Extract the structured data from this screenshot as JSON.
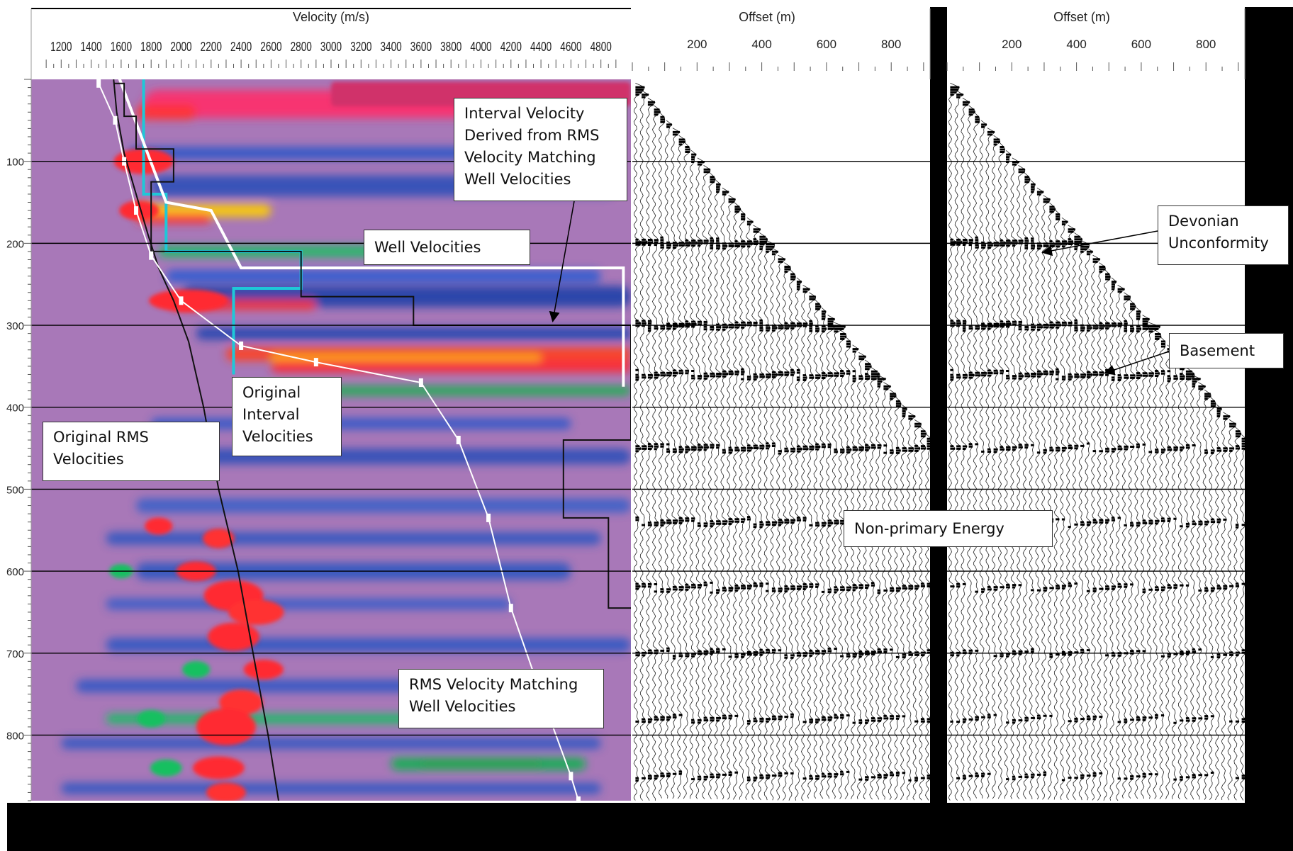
{
  "chart_data": [
    {
      "type": "heatmap",
      "title": "",
      "xlabel": "Velocity (m/s)",
      "ylabel": "",
      "x_ticks": [
        1200,
        1400,
        1600,
        1800,
        2000,
        2200,
        2400,
        2600,
        2800,
        3000,
        3200,
        3400,
        3600,
        3800,
        4000,
        4200,
        4400,
        4600,
        4800
      ],
      "y_ticks": [
        100,
        200,
        300,
        400,
        500,
        600,
        700,
        800
      ],
      "xlim": [
        1000,
        5000
      ],
      "ylim": [
        0,
        880
      ],
      "grid": true,
      "series": [
        {
          "name": "Original RMS Velocities",
          "color": "#111111",
          "points": [
            [
              1550,
              0
            ],
            [
              1570,
              40
            ],
            [
              1620,
              90
            ],
            [
              1700,
              140
            ],
            [
              1780,
              190
            ],
            [
              1850,
              230
            ],
            [
              1950,
              270
            ],
            [
              2050,
              320
            ],
            [
              2150,
              400
            ],
            [
              2250,
              500
            ],
            [
              2380,
              600
            ],
            [
              2480,
              700
            ],
            [
              2580,
              800
            ],
            [
              2650,
              880
            ]
          ]
        },
        {
          "name": "Original Interval Velocities",
          "color": "#1ec8d8",
          "points": [
            [
              1620,
              -10
            ],
            [
              1750,
              -10
            ],
            [
              1750,
              140
            ],
            [
              1900,
              140
            ],
            [
              1900,
              210
            ],
            [
              2800,
              210
            ],
            [
              2800,
              255
            ],
            [
              2350,
              255
            ],
            [
              2350,
              360
            ]
          ]
        },
        {
          "name": "Well Velocities",
          "color": "#ffffff",
          "points": [
            [
              1580,
              -5
            ],
            [
              1900,
              150
            ],
            [
              2200,
              160
            ],
            [
              2400,
              230
            ],
            [
              4950,
              230
            ],
            [
              4950,
              375
            ]
          ]
        },
        {
          "name": "Interval Velocity Derived from RMS Velocity Matching Well Velocities",
          "color": "#111111",
          "points": [
            [
              1550,
              5
            ],
            [
              1620,
              5
            ],
            [
              1620,
              45
            ],
            [
              1700,
              45
            ],
            [
              1700,
              85
            ],
            [
              1950,
              85
            ],
            [
              1950,
              125
            ],
            [
              1800,
              125
            ],
            [
              1800,
              210
            ],
            [
              2800,
              210
            ],
            [
              2800,
              265
            ],
            [
              3550,
              265
            ],
            [
              3550,
              300
            ],
            [
              5000,
              300
            ],
            [
              5000,
              440
            ],
            [
              4550,
              440
            ],
            [
              4550,
              535
            ],
            [
              4850,
              535
            ],
            [
              4850,
              645
            ],
            [
              5000,
              645
            ]
          ]
        },
        {
          "name": "RMS Velocity Matching Well Velocities",
          "color": "#ffffff",
          "points": [
            [
              1450,
              5
            ],
            [
              1560,
              50
            ],
            [
              1620,
              100
            ],
            [
              1700,
              160
            ],
            [
              1800,
              215
            ],
            [
              2000,
              270
            ],
            [
              2400,
              325
            ],
            [
              2900,
              345
            ],
            [
              3600,
              370
            ],
            [
              3850,
              440
            ],
            [
              4050,
              535
            ],
            [
              4200,
              645
            ],
            [
              4400,
              750
            ],
            [
              4600,
              850
            ],
            [
              4650,
              880
            ]
          ]
        }
      ]
    },
    {
      "type": "seismic_gather",
      "xlabel": "Offset (m)",
      "x_ticks": [
        200,
        400,
        600,
        800
      ],
      "xlim": [
        0,
        920
      ],
      "y_ticks": [
        100,
        200,
        300,
        400,
        500,
        600,
        700,
        800
      ],
      "ylim": [
        0,
        880
      ]
    },
    {
      "type": "seismic_gather",
      "xlabel": "Offset (m)",
      "x_ticks": [
        200,
        400,
        600,
        800
      ],
      "xlim": [
        0,
        920
      ],
      "y_ticks": [
        100,
        200,
        300,
        400,
        500,
        600,
        700,
        800
      ],
      "ylim": [
        0,
        880
      ]
    }
  ],
  "callouts": {
    "interval_derived": [
      "Interval Velocity",
      "Derived from RMS",
      "Velocity Matching",
      "Well Velocities"
    ],
    "well_velocities": "Well Velocities",
    "original_interval": [
      "Original",
      "Interval",
      "Velocities"
    ],
    "original_rms": [
      "Original RMS",
      "Velocities"
    ],
    "rms_matching": [
      "RMS Velocity  Matching",
      "Well Velocities"
    ],
    "devonian": [
      "Devonian",
      "Unconformity"
    ],
    "basement": "Basement",
    "non_primary": "Non-primary Energy"
  }
}
